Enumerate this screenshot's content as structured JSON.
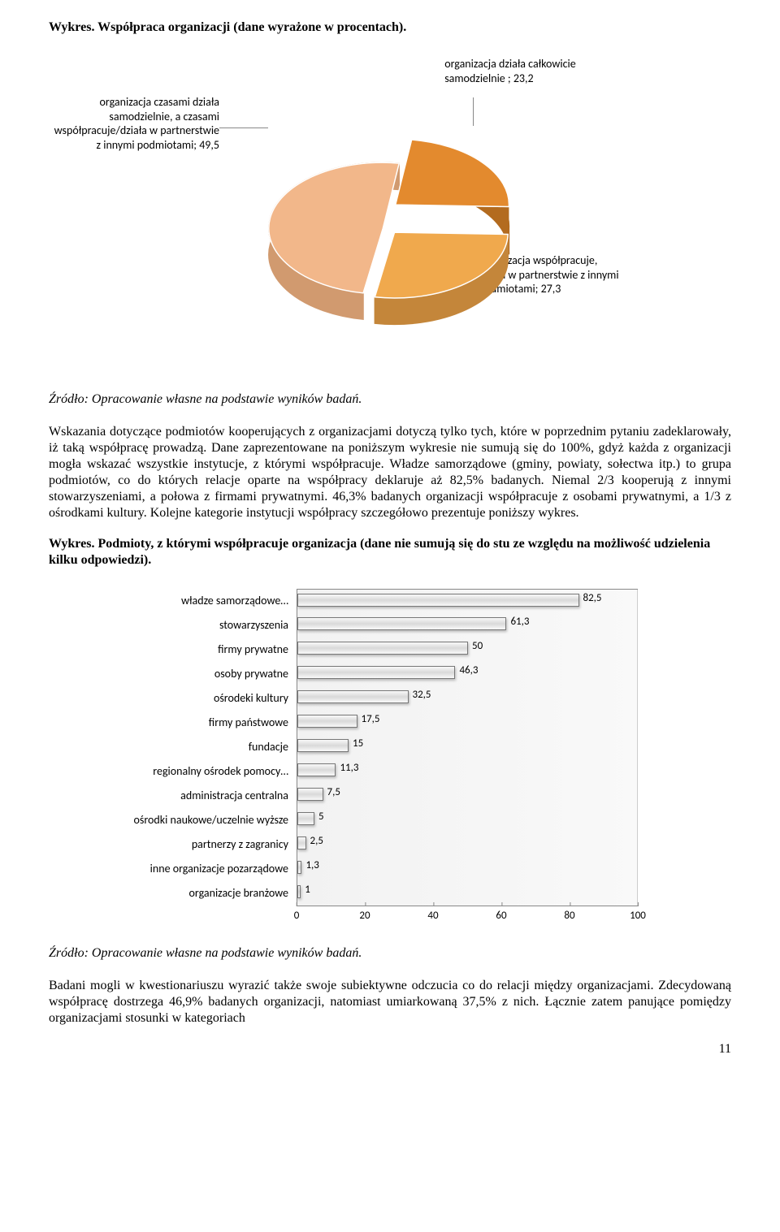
{
  "chart1_title": "Wykres. Współpraca organizacji (dane wyrażone w procentach).",
  "pie": {
    "slices": [
      {
        "label": "organizacja czasami działa samodzielnie, a czasami współpracuje/działa w partnerstwie z innymi podmiotami; 49,5",
        "value": 49.5,
        "color": "#f2b78a",
        "side_color": "#d19a6f"
      },
      {
        "label": "organizacja działa całkowicie samodzielnie ; 23,2",
        "value": 23.2,
        "color": "#e38a2e",
        "side_color": "#b36b1f"
      },
      {
        "label": "organizacja współpracuje, działa w partnerstwie z innymi podmiotami; 27,3",
        "value": 27.3,
        "color": "#f0a94d",
        "side_color": "#c4863a"
      }
    ]
  },
  "source1": "Źródło: Opracowanie własne na podstawie wyników badań.",
  "para1": "Wskazania dotyczące podmiotów kooperujących z organizacjami dotyczą tylko tych, które w poprzednim pytaniu zadeklarowały, iż taką współpracę prowadzą. Dane zaprezentowane na poniższym wykresie nie sumują się do 100%, gdyż każda z organizacji mogła wskazać wszystkie instytucje, z którymi współpracuje. Władze samorządowe (gminy, powiaty, sołectwa itp.) to grupa podmiotów, co do których relacje oparte na współpracy deklaruje aż 82,5% badanych. Niemal 2/3 kooperują z innymi stowarzyszeniami, a połowa z firmami prywatnymi. 46,3% badanych organizacji współpracuje z osobami prywatnymi, a 1/3 z ośrodkami kultury. Kolejne kategorie instytucji współpracy szczegółowo prezentuje poniższy wykres.",
  "chart2_title": "Wykres. Podmioty, z którymi współpracuje organizacja (dane nie sumują się do stu ze względu na możliwość udzielenia kilku odpowiedzi).",
  "bar": {
    "xmax": 100,
    "ticks": [
      0,
      20,
      40,
      60,
      80,
      100
    ],
    "items": [
      {
        "cat": "władze samorządowe…",
        "val": 82.5,
        "label": "82,5"
      },
      {
        "cat": "stowarzyszenia",
        "val": 61.3,
        "label": "61,3"
      },
      {
        "cat": "firmy prywatne",
        "val": 50,
        "label": "50"
      },
      {
        "cat": "osoby prywatne",
        "val": 46.3,
        "label": "46,3"
      },
      {
        "cat": "ośrodeki kultury",
        "val": 32.5,
        "label": "32,5"
      },
      {
        "cat": "firmy państwowe",
        "val": 17.5,
        "label": "17,5"
      },
      {
        "cat": "fundacje",
        "val": 15,
        "label": "15"
      },
      {
        "cat": "regionalny ośrodek pomocy…",
        "val": 11.3,
        "label": "11,3"
      },
      {
        "cat": "administracja centralna",
        "val": 7.5,
        "label": "7,5"
      },
      {
        "cat": "ośrodki naukowe/uczelnie wyższe",
        "val": 5,
        "label": "5"
      },
      {
        "cat": "partnerzy z zagranicy",
        "val": 2.5,
        "label": "2,5"
      },
      {
        "cat": "inne organizacje pozarządowe",
        "val": 1.3,
        "label": "1,3"
      },
      {
        "cat": "organizacje branżowe",
        "val": 1,
        "label": "1"
      }
    ]
  },
  "source2": "Źródło: Opracowanie własne na podstawie wyników badań.",
  "para2": "Badani mogli w kwestionariuszu wyrazić także swoje subiektywne odczucia co do relacji między organizacjami. Zdecydowaną współpracę dostrzega 46,9% badanych organizacji, natomiast umiarkowaną 37,5% z nich. Łącznie zatem panujące pomiędzy organizacjami stosunki w kategoriach",
  "page": "11"
}
